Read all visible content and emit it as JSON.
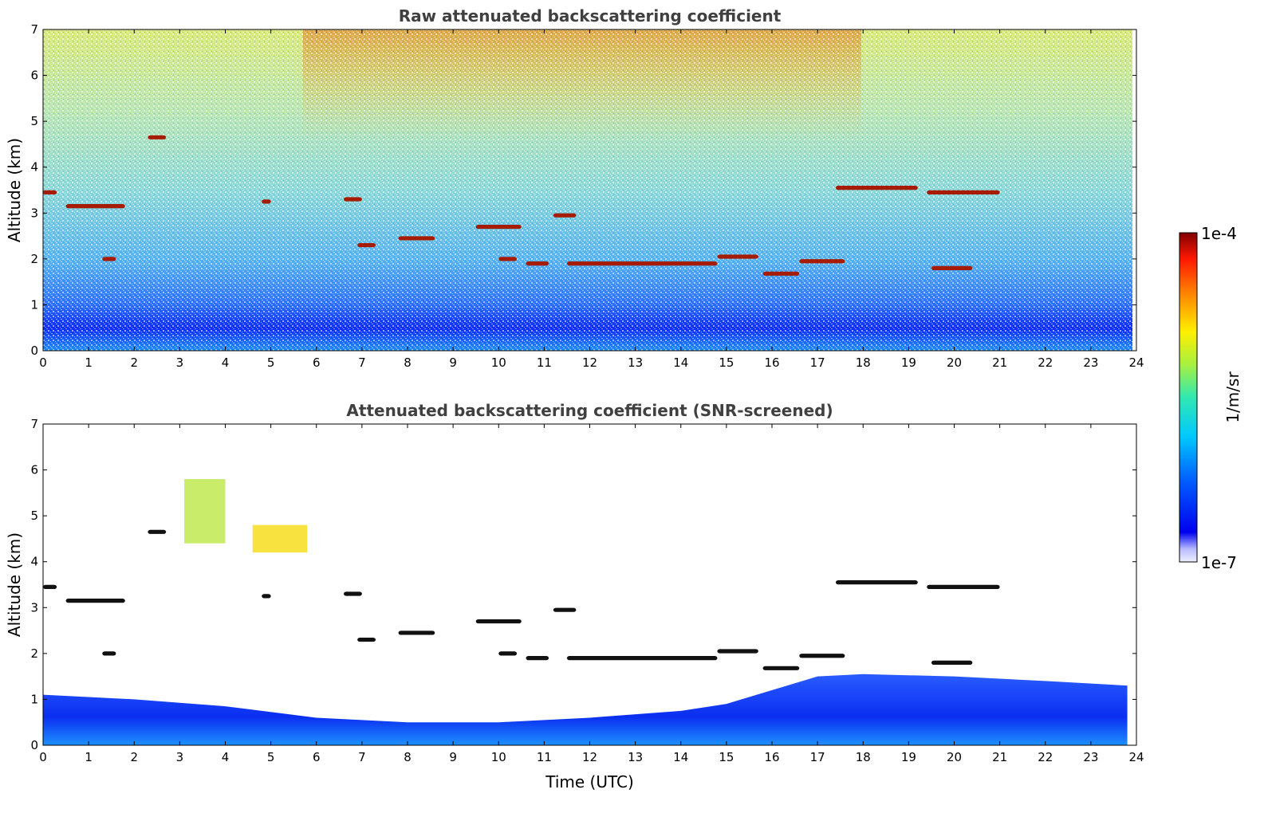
{
  "chart_data": [
    {
      "type": "heatmap",
      "title": "Raw attenuated backscattering coefficient",
      "xlabel": "",
      "ylabel": "Altitude (km)",
      "xlim": [
        0,
        24
      ],
      "ylim": [
        0,
        7
      ],
      "xticks": [
        "0",
        "1",
        "2",
        "3",
        "4",
        "5",
        "6",
        "7",
        "8",
        "9",
        "10",
        "11",
        "12",
        "13",
        "14",
        "15",
        "16",
        "17",
        "18",
        "19",
        "20",
        "21",
        "22",
        "23",
        "24"
      ],
      "yticks": [
        "0",
        "1",
        "2",
        "3",
        "4",
        "5",
        "6",
        "7"
      ],
      "screened": false,
      "cloud_layers": [
        {
          "t0": 0.0,
          "t1": 0.3,
          "alt": 3.45
        },
        {
          "t0": 0.5,
          "t1": 1.8,
          "alt": 3.15
        },
        {
          "t0": 1.3,
          "t1": 1.6,
          "alt": 2.0
        },
        {
          "t0": 2.3,
          "t1": 2.7,
          "alt": 4.65
        },
        {
          "t0": 4.8,
          "t1": 5.0,
          "alt": 3.25
        },
        {
          "t0": 6.6,
          "t1": 7.0,
          "alt": 3.3
        },
        {
          "t0": 6.9,
          "t1": 7.3,
          "alt": 2.3
        },
        {
          "t0": 7.8,
          "t1": 8.6,
          "alt": 2.45
        },
        {
          "t0": 9.5,
          "t1": 10.5,
          "alt": 2.7
        },
        {
          "t0": 10.0,
          "t1": 10.4,
          "alt": 2.0
        },
        {
          "t0": 10.6,
          "t1": 11.1,
          "alt": 1.9
        },
        {
          "t0": 11.2,
          "t1": 11.7,
          "alt": 2.95
        },
        {
          "t0": 11.5,
          "t1": 14.8,
          "alt": 1.9
        },
        {
          "t0": 14.8,
          "t1": 15.7,
          "alt": 2.05
        },
        {
          "t0": 15.8,
          "t1": 16.6,
          "alt": 1.68
        },
        {
          "t0": 16.6,
          "t1": 17.6,
          "alt": 1.95
        },
        {
          "t0": 17.4,
          "t1": 19.2,
          "alt": 3.55
        },
        {
          "t0": 19.4,
          "t1": 21.0,
          "alt": 3.45
        },
        {
          "t0": 19.5,
          "t1": 20.4,
          "alt": 1.8
        }
      ]
    },
    {
      "type": "heatmap",
      "title": "Attenuated backscattering coefficient (SNR-screened)",
      "xlabel": "Time (UTC)",
      "ylabel": "Altitude (km)",
      "xlim": [
        0,
        24
      ],
      "ylim": [
        0,
        7
      ],
      "xticks": [
        "0",
        "1",
        "2",
        "3",
        "4",
        "5",
        "6",
        "7",
        "8",
        "9",
        "10",
        "11",
        "12",
        "13",
        "14",
        "15",
        "16",
        "17",
        "18",
        "19",
        "20",
        "21",
        "22",
        "23",
        "24"
      ],
      "yticks": [
        "0",
        "1",
        "2",
        "3",
        "4",
        "5",
        "6",
        "7"
      ],
      "screened": true,
      "cloud_layers": [
        {
          "t0": 0.0,
          "t1": 0.3,
          "alt": 3.45
        },
        {
          "t0": 0.5,
          "t1": 1.8,
          "alt": 3.15
        },
        {
          "t0": 1.3,
          "t1": 1.6,
          "alt": 2.0
        },
        {
          "t0": 2.3,
          "t1": 2.7,
          "alt": 4.65
        },
        {
          "t0": 4.8,
          "t1": 5.0,
          "alt": 3.25
        },
        {
          "t0": 6.6,
          "t1": 7.0,
          "alt": 3.3
        },
        {
          "t0": 6.9,
          "t1": 7.3,
          "alt": 2.3
        },
        {
          "t0": 7.8,
          "t1": 8.6,
          "alt": 2.45
        },
        {
          "t0": 9.5,
          "t1": 10.5,
          "alt": 2.7
        },
        {
          "t0": 10.0,
          "t1": 10.4,
          "alt": 2.0
        },
        {
          "t0": 10.6,
          "t1": 11.1,
          "alt": 1.9
        },
        {
          "t0": 11.2,
          "t1": 11.7,
          "alt": 2.95
        },
        {
          "t0": 11.5,
          "t1": 14.8,
          "alt": 1.9
        },
        {
          "t0": 14.8,
          "t1": 15.7,
          "alt": 2.05
        },
        {
          "t0": 15.8,
          "t1": 16.6,
          "alt": 1.68
        },
        {
          "t0": 16.6,
          "t1": 17.6,
          "alt": 1.95
        },
        {
          "t0": 17.4,
          "t1": 19.2,
          "alt": 3.55
        },
        {
          "t0": 19.4,
          "t1": 21.0,
          "alt": 3.45
        },
        {
          "t0": 19.5,
          "t1": 20.4,
          "alt": 1.8
        }
      ],
      "boundary_layer_top": [
        [
          0,
          1.1
        ],
        [
          2,
          1.0
        ],
        [
          4,
          0.85
        ],
        [
          6,
          0.6
        ],
        [
          8,
          0.5
        ],
        [
          10,
          0.5
        ],
        [
          12,
          0.6
        ],
        [
          14,
          0.75
        ],
        [
          15,
          0.9
        ],
        [
          16,
          1.2
        ],
        [
          17,
          1.5
        ],
        [
          18,
          1.55
        ],
        [
          20,
          1.5
        ],
        [
          22,
          1.4
        ],
        [
          23.8,
          1.3
        ]
      ],
      "aerosol_patches": [
        {
          "t0": 3.1,
          "t1": 4.0,
          "alt_min": 4.4,
          "alt_max": 5.8,
          "color": "#b7e53a"
        },
        {
          "t0": 4.6,
          "t1": 5.8,
          "alt_min": 4.2,
          "alt_max": 4.8,
          "color": "#f5d800"
        }
      ]
    }
  ],
  "colorbar": {
    "label": "1/m/sr",
    "min_label": "1e-7",
    "max_label": "1e-4",
    "scale": "log"
  },
  "colors": {
    "cloud": "#a51c00",
    "cloud_screened": "#111111",
    "surface": "#1f6bff"
  }
}
